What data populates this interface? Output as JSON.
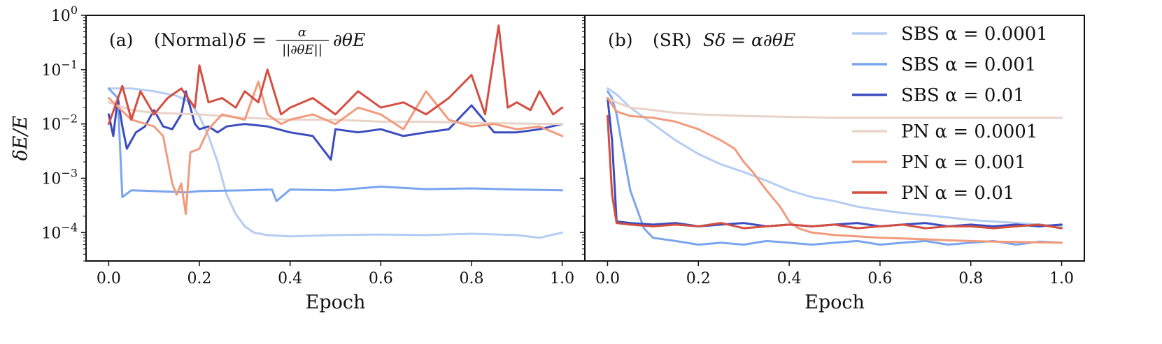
{
  "chart_data": [
    {
      "type": "line",
      "panel_tag": "(a)",
      "title_text": "(Normal)",
      "formula": "δ = α / ||∂θE|| ∂θE",
      "formula_lhs": "δ =",
      "formula_num": "α",
      "formula_den": "||∂θE||",
      "formula_rhs": "∂θE",
      "xlabel": "Epoch",
      "ylabel": "δE/E",
      "yscale": "log",
      "xlim": [
        -0.05,
        1.05
      ],
      "ylim": [
        3e-05,
        1.0
      ],
      "xticks": [
        "0.0",
        "0.2",
        "0.4",
        "0.6",
        "0.8",
        "1.0"
      ],
      "yticks": [
        "10^0",
        "10^−1",
        "10^−2",
        "10^−3",
        "10^−4"
      ],
      "series": [
        {
          "name": "SBS α = 0.0001",
          "color": "#b4cdf2",
          "x": [
            0.0,
            0.05,
            0.1,
            0.15,
            0.18,
            0.2,
            0.22,
            0.24,
            0.26,
            0.28,
            0.3,
            0.32,
            0.35,
            0.4,
            0.5,
            0.6,
            0.7,
            0.8,
            0.9,
            0.95,
            1.0
          ],
          "y": [
            0.045,
            0.045,
            0.04,
            0.033,
            0.025,
            0.014,
            0.006,
            0.002,
            0.0005,
            0.00022,
            0.00013,
            0.0001,
            9e-05,
            8.5e-05,
            9e-05,
            9.2e-05,
            9e-05,
            9.5e-05,
            9e-05,
            8e-05,
            0.0001
          ]
        },
        {
          "name": "SBS α = 0.001",
          "color": "#7aa5ee",
          "x": [
            0.0,
            0.02,
            0.03,
            0.05,
            0.1,
            0.17,
            0.2,
            0.3,
            0.36,
            0.37,
            0.4,
            0.5,
            0.6,
            0.7,
            0.8,
            0.9,
            1.0
          ],
          "y": [
            0.045,
            0.03,
            0.00045,
            0.0006,
            0.00058,
            0.00055,
            0.00058,
            0.0006,
            0.00062,
            0.00038,
            0.00062,
            0.0006,
            0.0007,
            0.00063,
            0.00065,
            0.00062,
            0.0006
          ]
        },
        {
          "name": "SBS α = 0.01",
          "color": "#3b4cc0",
          "x": [
            0.0,
            0.01,
            0.02,
            0.03,
            0.04,
            0.06,
            0.08,
            0.1,
            0.12,
            0.14,
            0.16,
            0.17,
            0.19,
            0.2,
            0.22,
            0.24,
            0.26,
            0.3,
            0.35,
            0.4,
            0.45,
            0.49,
            0.5,
            0.55,
            0.6,
            0.65,
            0.7,
            0.75,
            0.8,
            0.85,
            0.9,
            0.95,
            1.0
          ],
          "y": [
            0.015,
            0.006,
            0.03,
            0.009,
            0.0035,
            0.007,
            0.009,
            0.018,
            0.009,
            0.008,
            0.015,
            0.04,
            0.01,
            0.008,
            0.009,
            0.007,
            0.009,
            0.01,
            0.009,
            0.007,
            0.006,
            0.0022,
            0.008,
            0.007,
            0.008,
            0.006,
            0.007,
            0.008,
            0.022,
            0.007,
            0.007,
            0.008,
            0.01
          ]
        },
        {
          "name": "PN α = 0.0001",
          "color": "#e8d3c9",
          "x": [
            0.0,
            0.05,
            0.1,
            0.2,
            0.3,
            0.4,
            0.5,
            0.6,
            0.7,
            0.8,
            0.9,
            1.0
          ],
          "y": [
            0.025,
            0.018,
            0.016,
            0.015,
            0.013,
            0.012,
            0.012,
            0.011,
            0.011,
            0.0105,
            0.0102,
            0.01
          ]
        },
        {
          "name": "PN α = 0.001",
          "color": "#f29b7c",
          "x": [
            0.0,
            0.05,
            0.1,
            0.12,
            0.14,
            0.15,
            0.16,
            0.17,
            0.18,
            0.2,
            0.22,
            0.25,
            0.3,
            0.33,
            0.35,
            0.38,
            0.4,
            0.45,
            0.5,
            0.55,
            0.6,
            0.65,
            0.7,
            0.75,
            0.8,
            0.85,
            0.9,
            0.95,
            1.0
          ],
          "y": [
            0.03,
            0.012,
            0.009,
            0.006,
            0.0008,
            0.0005,
            0.0008,
            0.00022,
            0.003,
            0.0035,
            0.008,
            0.015,
            0.012,
            0.06,
            0.015,
            0.01,
            0.012,
            0.015,
            0.01,
            0.02,
            0.015,
            0.008,
            0.04,
            0.012,
            0.009,
            0.01,
            0.008,
            0.009,
            0.006
          ]
        },
        {
          "name": "PN α = 0.01",
          "color": "#d44e41",
          "x": [
            0.0,
            0.03,
            0.05,
            0.07,
            0.1,
            0.13,
            0.16,
            0.19,
            0.2,
            0.22,
            0.25,
            0.28,
            0.3,
            0.33,
            0.35,
            0.38,
            0.4,
            0.45,
            0.5,
            0.55,
            0.6,
            0.65,
            0.7,
            0.75,
            0.8,
            0.83,
            0.86,
            0.88,
            0.9,
            0.93,
            0.95,
            0.98,
            1.0
          ],
          "y": [
            0.01,
            0.05,
            0.012,
            0.04,
            0.015,
            0.03,
            0.045,
            0.02,
            0.12,
            0.025,
            0.03,
            0.02,
            0.04,
            0.025,
            0.1,
            0.015,
            0.02,
            0.03,
            0.015,
            0.04,
            0.02,
            0.025,
            0.015,
            0.03,
            0.08,
            0.015,
            0.65,
            0.02,
            0.025,
            0.018,
            0.04,
            0.015,
            0.02
          ]
        }
      ]
    },
    {
      "type": "line",
      "panel_tag": "(b)",
      "title_text": "(SR)",
      "formula": "Sδ = α∂θE",
      "xlabel": "Epoch",
      "xlim": [
        -0.05,
        1.05
      ],
      "ylim": [
        3e-05,
        1.0
      ],
      "xticks": [
        "0.0",
        "0.2",
        "0.4",
        "0.6",
        "0.8",
        "1.0"
      ],
      "series": [
        {
          "name": "SBS α = 0.0001",
          "color": "#b4cdf2",
          "x": [
            0.0,
            0.02,
            0.05,
            0.1,
            0.15,
            0.2,
            0.25,
            0.3,
            0.35,
            0.4,
            0.45,
            0.5,
            0.55,
            0.6,
            0.65,
            0.7,
            0.75,
            0.8,
            0.85,
            0.9,
            0.95,
            1.0
          ],
          "y": [
            0.045,
            0.035,
            0.02,
            0.01,
            0.005,
            0.0028,
            0.0018,
            0.0013,
            0.0009,
            0.0006,
            0.00045,
            0.00038,
            0.0003,
            0.00026,
            0.00023,
            0.00021,
            0.00019,
            0.00017,
            0.00016,
            0.00015,
            0.00014,
            0.00013
          ]
        },
        {
          "name": "SBS α = 0.001",
          "color": "#7aa5ee",
          "x": [
            0.0,
            0.01,
            0.02,
            0.03,
            0.05,
            0.08,
            0.1,
            0.15,
            0.2,
            0.25,
            0.3,
            0.35,
            0.4,
            0.45,
            0.5,
            0.55,
            0.6,
            0.65,
            0.7,
            0.75,
            0.8,
            0.85,
            0.9,
            0.95,
            1.0
          ],
          "y": [
            0.04,
            0.03,
            0.015,
            0.005,
            0.0006,
            0.00012,
            8e-05,
            7e-05,
            6e-05,
            6.5e-05,
            6e-05,
            7e-05,
            6.5e-05,
            6e-05,
            6.5e-05,
            7e-05,
            6e-05,
            6.5e-05,
            7e-05,
            6e-05,
            6.5e-05,
            7e-05,
            6e-05,
            6.8e-05,
            6.5e-05
          ]
        },
        {
          "name": "SBS α = 0.01",
          "color": "#3b4cc0",
          "x": [
            0.0,
            0.01,
            0.02,
            0.05,
            0.1,
            0.15,
            0.2,
            0.25,
            0.3,
            0.35,
            0.4,
            0.45,
            0.5,
            0.55,
            0.6,
            0.65,
            0.7,
            0.75,
            0.8,
            0.85,
            0.9,
            0.95,
            1.0
          ],
          "y": [
            0.03,
            0.005,
            0.00016,
            0.00015,
            0.00014,
            0.00015,
            0.00013,
            0.00014,
            0.00015,
            0.00013,
            0.00014,
            0.00013,
            0.00014,
            0.00015,
            0.00013,
            0.00014,
            0.00015,
            0.00013,
            0.00014,
            0.00013,
            0.00014,
            0.00013,
            0.00014
          ]
        },
        {
          "name": "PN α = 0.0001",
          "color": "#e8d3c9",
          "x": [
            0.0,
            0.02,
            0.05,
            0.1,
            0.15,
            0.2,
            0.3,
            0.4,
            0.5,
            0.6,
            0.7,
            0.8,
            0.9,
            1.0
          ],
          "y": [
            0.03,
            0.025,
            0.02,
            0.018,
            0.016,
            0.015,
            0.014,
            0.0135,
            0.013,
            0.013,
            0.013,
            0.013,
            0.013,
            0.013
          ]
        },
        {
          "name": "PN α = 0.001",
          "color": "#f29b7c",
          "x": [
            0.0,
            0.02,
            0.05,
            0.1,
            0.15,
            0.2,
            0.25,
            0.28,
            0.3,
            0.32,
            0.35,
            0.38,
            0.4,
            0.42,
            0.45,
            0.5,
            0.55,
            0.6,
            0.65,
            0.7,
            0.75,
            0.8,
            0.85,
            0.9,
            0.95,
            1.0
          ],
          "y": [
            0.03,
            0.017,
            0.014,
            0.013,
            0.011,
            0.008,
            0.005,
            0.0035,
            0.002,
            0.0013,
            0.0006,
            0.0003,
            0.00016,
            0.00012,
            0.0001,
            9e-05,
            8.5e-05,
            8e-05,
            7.8e-05,
            7.5e-05,
            7.2e-05,
            7e-05,
            6.8e-05,
            6.7e-05,
            6.6e-05,
            6.5e-05
          ]
        },
        {
          "name": "PN α = 0.01",
          "color": "#d44e41",
          "x": [
            0.0,
            0.01,
            0.02,
            0.05,
            0.1,
            0.15,
            0.2,
            0.25,
            0.3,
            0.35,
            0.4,
            0.45,
            0.5,
            0.55,
            0.6,
            0.65,
            0.7,
            0.75,
            0.8,
            0.85,
            0.9,
            0.95,
            1.0
          ],
          "y": [
            0.014,
            0.0005,
            0.00015,
            0.00014,
            0.00013,
            0.00014,
            0.00013,
            0.00015,
            0.00012,
            0.00013,
            0.00014,
            0.00013,
            0.00014,
            0.00012,
            0.00013,
            0.00014,
            0.00012,
            0.00013,
            0.00013,
            0.00012,
            0.00013,
            0.00014,
            0.00012
          ]
        }
      ]
    }
  ]
}
